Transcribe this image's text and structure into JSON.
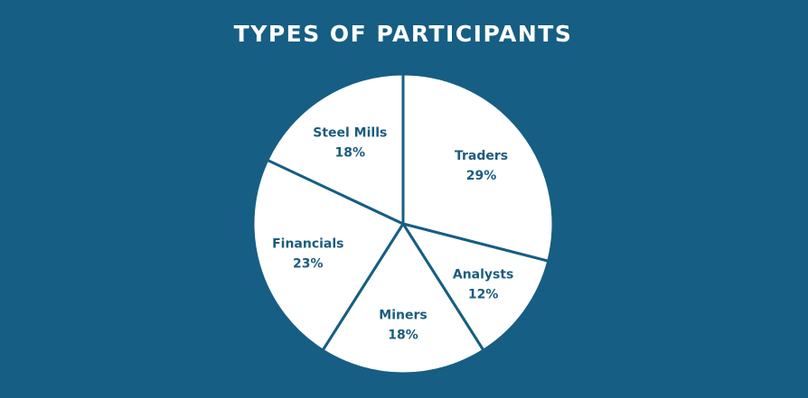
{
  "chart_data": {
    "type": "pie",
    "title": "TYPES OF PARTICIPANTS",
    "categories": [
      "Traders",
      "Analysts",
      "Miners",
      "Financials",
      "Steel Mills"
    ],
    "values": [
      29,
      12,
      18,
      23,
      18
    ],
    "value_labels": [
      "29%",
      "12%",
      "18%",
      "23%",
      "18%"
    ],
    "color": "#ffffff"
  }
}
